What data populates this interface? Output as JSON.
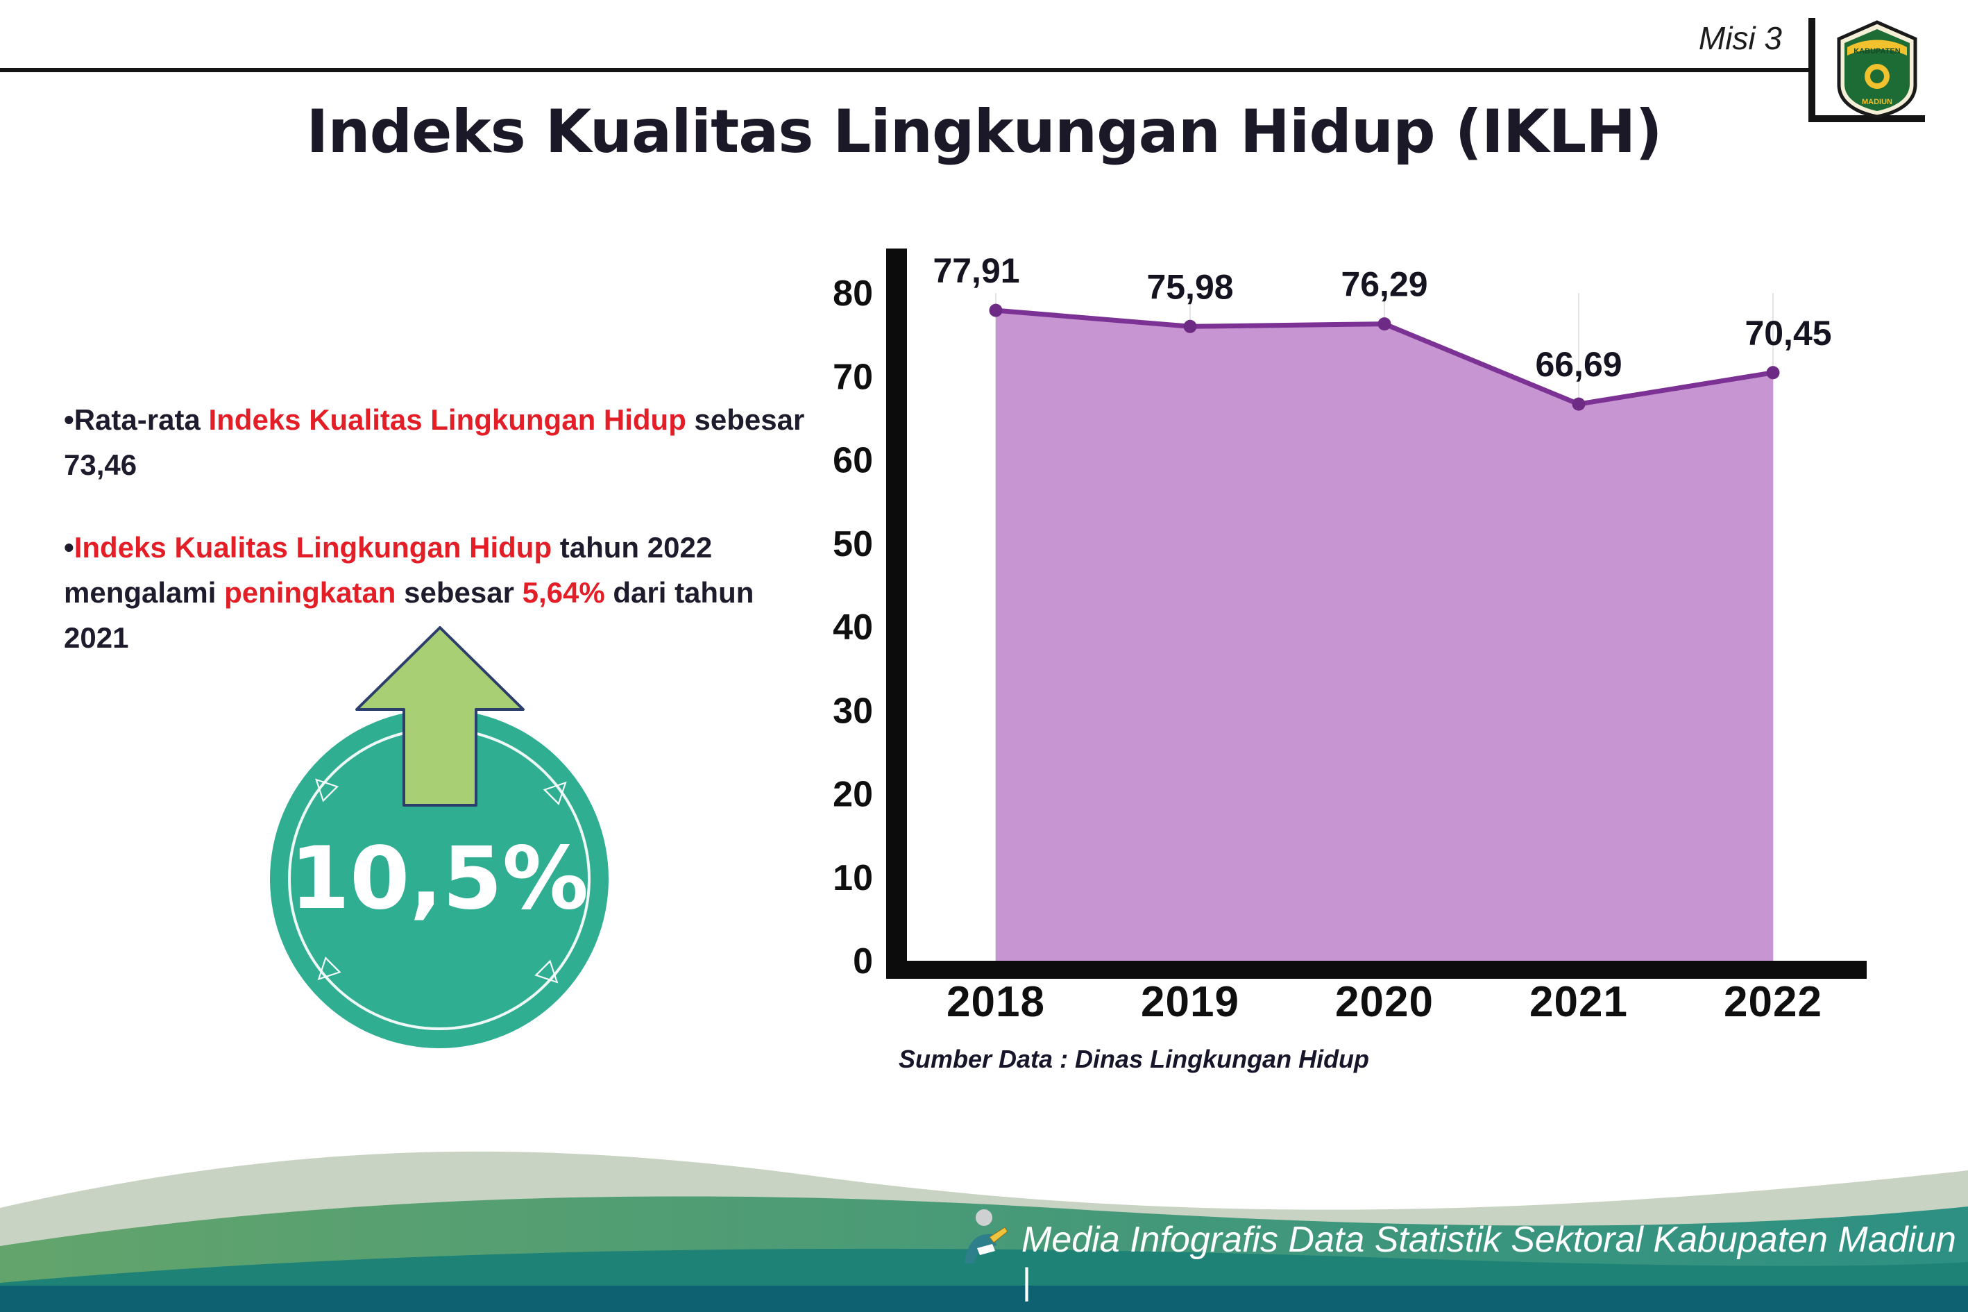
{
  "header": {
    "misi_label": "Misi 3",
    "title": "Indeks Kualitas Lingkungan Hidup (IKLH)",
    "logo": {
      "top_text": "KABUPATEN",
      "bottom_text": "MADIUN"
    }
  },
  "insights": {
    "bullet_char": "•",
    "bullet1": {
      "seg1": "Rata-rata ",
      "seg2": "Indeks Kualitas Lingkungan Hidup",
      "seg3": " sebesar 73,46"
    },
    "bullet2": {
      "seg1": "Indeks Kualitas Lingkungan Hidup",
      "seg2": " tahun 2022 mengalami ",
      "seg3": "peningkatan",
      "seg4": " sebesar ",
      "seg5": "5,64%",
      "seg6": " dari tahun 2021"
    }
  },
  "badge": {
    "value": "10,5%"
  },
  "chart_data": {
    "type": "area",
    "categories": [
      "2018",
      "2019",
      "2020",
      "2021",
      "2022"
    ],
    "values": [
      77.91,
      75.98,
      76.29,
      66.69,
      70.45
    ],
    "point_labels": [
      "77,91",
      "75,98",
      "76,29",
      "66,69",
      "70,45"
    ],
    "ylim": [
      0,
      80
    ],
    "yticks": [
      0,
      10,
      20,
      30,
      40,
      50,
      60,
      70,
      80
    ],
    "grid": "vertical-light",
    "line_color": "#7b3294",
    "fill_color": "#c795d1",
    "marker_color": "#6d2b85",
    "source_note": "Sumber Data : Dinas Lingkungan Hidup"
  },
  "footer": {
    "credit": "Media Infografis Data Statistik Sektoral Kabupaten Madiun |"
  }
}
